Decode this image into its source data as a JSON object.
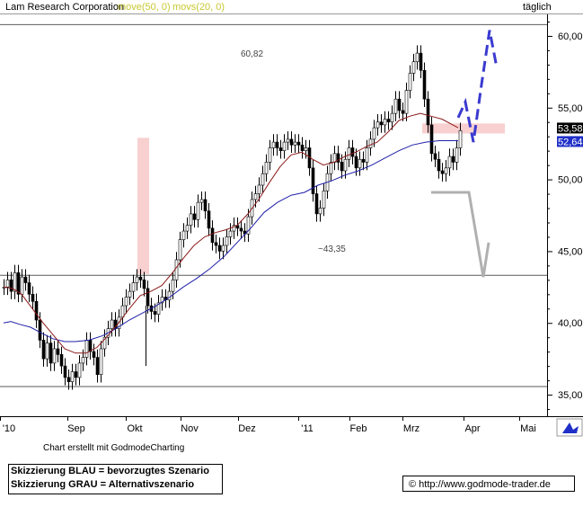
{
  "chart_data": {
    "type": "candlestick",
    "title": "Lam Research Corporation",
    "indicators": [
      {
        "label": "move(50, 0)",
        "color": "#c8c832"
      },
      {
        "label": "movs(20, 0)",
        "color": "#c8c832"
      }
    ],
    "timeframe": "täglich",
    "x_labels": [
      "'10",
      "Sep",
      "Okt",
      "Nov",
      "Dez",
      "'11",
      "Feb",
      "Mrz",
      "Apr",
      "Mai"
    ],
    "y_ticks": [
      "35,00",
      "40,00",
      "45,00",
      "50,00",
      "55,00",
      "60,00"
    ],
    "ylim": [
      33.5,
      61.5
    ],
    "horizontal_lines": [
      {
        "value": 60.82,
        "label": "60,82"
      },
      {
        "value": 43.35,
        "label": "~43,35"
      },
      {
        "value": 35.6,
        "label": ""
      }
    ],
    "price_labels": [
      {
        "value": 53.58,
        "text": "53,58",
        "bg": "#000000"
      },
      {
        "value": 52.64,
        "text": "52,64",
        "bg": "#1f2fc8"
      }
    ],
    "series": [
      {
        "name": "move(50, 0)",
        "color": "#1f1fa8",
        "points": [
          [
            0,
            40.0
          ],
          [
            8,
            40.1
          ],
          [
            18,
            39.9
          ],
          [
            30,
            39.7
          ],
          [
            42,
            39.3
          ],
          [
            55,
            38.9
          ],
          [
            68,
            38.7
          ],
          [
            80,
            38.7
          ],
          [
            95,
            38.8
          ],
          [
            110,
            39.1
          ],
          [
            125,
            39.6
          ],
          [
            140,
            40.2
          ],
          [
            155,
            40.7
          ],
          [
            170,
            41.2
          ],
          [
            185,
            41.8
          ],
          [
            200,
            42.5
          ],
          [
            215,
            43.1
          ],
          [
            230,
            43.8
          ],
          [
            245,
            44.6
          ],
          [
            260,
            45.6
          ],
          [
            275,
            46.6
          ],
          [
            290,
            47.7
          ],
          [
            305,
            48.4
          ],
          [
            320,
            48.9
          ],
          [
            335,
            49.1
          ],
          [
            350,
            49.6
          ],
          [
            365,
            49.9
          ],
          [
            380,
            50.3
          ],
          [
            395,
            50.6
          ],
          [
            410,
            51.0
          ],
          [
            425,
            51.5
          ],
          [
            440,
            52.0
          ],
          [
            455,
            52.4
          ],
          [
            470,
            52.6
          ],
          [
            485,
            52.7
          ],
          [
            500,
            52.7
          ],
          [
            506,
            52.7
          ]
        ]
      },
      {
        "name": "movs(20, 0)",
        "color": "#8b1a1a",
        "points": [
          [
            0,
            42.5
          ],
          [
            10,
            42.4
          ],
          [
            20,
            42.0
          ],
          [
            32,
            41.0
          ],
          [
            44,
            40.0
          ],
          [
            56,
            39.1
          ],
          [
            68,
            38.2
          ],
          [
            80,
            37.9
          ],
          [
            92,
            37.9
          ],
          [
            104,
            38.3
          ],
          [
            116,
            39.1
          ],
          [
            128,
            40.0
          ],
          [
            140,
            41.0
          ],
          [
            152,
            41.9
          ],
          [
            164,
            42.2
          ],
          [
            176,
            42.6
          ],
          [
            188,
            43.5
          ],
          [
            200,
            44.5
          ],
          [
            212,
            45.4
          ],
          [
            224,
            46.0
          ],
          [
            236,
            46.3
          ],
          [
            248,
            46.5
          ],
          [
            260,
            46.8
          ],
          [
            272,
            47.6
          ],
          [
            284,
            48.6
          ],
          [
            296,
            49.8
          ],
          [
            308,
            50.9
          ],
          [
            320,
            51.7
          ],
          [
            332,
            51.9
          ],
          [
            344,
            51.4
          ],
          [
            356,
            51.0
          ],
          [
            368,
            51.2
          ],
          [
            380,
            51.6
          ],
          [
            392,
            51.9
          ],
          [
            404,
            52.3
          ],
          [
            416,
            52.6
          ],
          [
            428,
            53.3
          ],
          [
            440,
            54.1
          ],
          [
            452,
            54.4
          ],
          [
            464,
            54.6
          ],
          [
            476,
            54.4
          ],
          [
            488,
            54.2
          ],
          [
            500,
            53.8
          ],
          [
            506,
            53.6
          ]
        ]
      }
    ],
    "candles": [
      [
        0,
        42.5
      ],
      [
        4,
        43.0
      ],
      [
        8,
        42.2
      ],
      [
        12,
        43.5
      ],
      [
        16,
        42.0
      ],
      [
        20,
        43.2
      ],
      [
        24,
        42.8
      ],
      [
        28,
        42.0
      ],
      [
        32,
        41.5
      ],
      [
        36,
        40.2
      ],
      [
        40,
        38.8
      ],
      [
        44,
        37.5
      ],
      [
        48,
        38.6
      ],
      [
        52,
        37.2
      ],
      [
        56,
        38.2
      ],
      [
        60,
        37.8
      ],
      [
        64,
        37.0
      ],
      [
        68,
        36.2
      ],
      [
        72,
        35.9
      ],
      [
        76,
        36.6
      ],
      [
        80,
        36.2
      ],
      [
        84,
        37.2
      ],
      [
        88,
        37.6
      ],
      [
        92,
        38.8
      ],
      [
        96,
        38.0
      ],
      [
        100,
        37.6
      ],
      [
        104,
        36.4
      ],
      [
        108,
        38.2
      ],
      [
        112,
        39.0
      ],
      [
        116,
        39.6
      ],
      [
        120,
        40.2
      ],
      [
        124,
        39.6
      ],
      [
        128,
        40.4
      ],
      [
        132,
        41.2
      ],
      [
        136,
        41.8
      ],
      [
        140,
        42.2
      ],
      [
        144,
        42.8
      ],
      [
        148,
        43.2
      ],
      [
        152,
        43.0
      ],
      [
        156,
        42.4
      ],
      [
        160,
        41.2
      ],
      [
        164,
        40.8
      ],
      [
        168,
        40.6
      ],
      [
        172,
        41.4
      ],
      [
        176,
        41.8
      ],
      [
        180,
        41.6
      ],
      [
        184,
        42.2
      ],
      [
        188,
        43.0
      ],
      [
        192,
        44.4
      ],
      [
        196,
        45.8
      ],
      [
        200,
        46.4
      ],
      [
        204,
        46.8
      ],
      [
        208,
        47.6
      ],
      [
        212,
        47.2
      ],
      [
        216,
        48.4
      ],
      [
        220,
        48.6
      ],
      [
        224,
        47.8
      ],
      [
        228,
        46.6
      ],
      [
        232,
        45.6
      ],
      [
        236,
        45.4
      ],
      [
        240,
        45.0
      ],
      [
        244,
        45.4
      ],
      [
        248,
        46.0
      ],
      [
        252,
        46.4
      ],
      [
        256,
        46.8
      ],
      [
        260,
        46.6
      ],
      [
        264,
        46.4
      ],
      [
        268,
        46.2
      ],
      [
        272,
        47.4
      ],
      [
        276,
        48.6
      ],
      [
        280,
        49.0
      ],
      [
        284,
        49.6
      ],
      [
        288,
        50.4
      ],
      [
        292,
        51.2
      ],
      [
        296,
        52.2
      ],
      [
        300,
        52.6
      ],
      [
        304,
        52.2
      ],
      [
        308,
        52.0
      ],
      [
        312,
        52.6
      ],
      [
        316,
        52.8
      ],
      [
        320,
        52.4
      ],
      [
        324,
        52.6
      ],
      [
        328,
        52.4
      ],
      [
        332,
        52.0
      ],
      [
        336,
        52.2
      ],
      [
        340,
        50.8
      ],
      [
        344,
        49.0
      ],
      [
        348,
        47.6
      ],
      [
        352,
        48.0
      ],
      [
        356,
        49.2
      ],
      [
        360,
        50.4
      ],
      [
        364,
        51.2
      ],
      [
        368,
        51.8
      ],
      [
        372,
        51.2
      ],
      [
        376,
        50.6
      ],
      [
        380,
        51.4
      ],
      [
        384,
        52.2
      ],
      [
        388,
        51.6
      ],
      [
        392,
        50.8
      ],
      [
        396,
        51.4
      ],
      [
        400,
        51.2
      ],
      [
        404,
        52.2
      ],
      [
        408,
        52.8
      ],
      [
        412,
        53.6
      ],
      [
        416,
        54.0
      ],
      [
        420,
        53.8
      ],
      [
        424,
        54.2
      ],
      [
        428,
        54.0
      ],
      [
        432,
        54.6
      ],
      [
        436,
        55.6
      ],
      [
        440,
        54.8
      ],
      [
        444,
        54.6
      ],
      [
        448,
        56.2
      ],
      [
        452,
        57.4
      ],
      [
        456,
        58.2
      ],
      [
        460,
        58.8
      ],
      [
        464,
        57.6
      ],
      [
        468,
        55.6
      ],
      [
        472,
        53.8
      ],
      [
        476,
        51.8
      ],
      [
        480,
        51.4
      ],
      [
        484,
        50.6
      ],
      [
        488,
        50.4
      ],
      [
        492,
        50.8
      ],
      [
        496,
        51.6
      ],
      [
        500,
        51.2
      ],
      [
        504,
        52.2
      ],
      [
        508,
        53.4
      ]
    ],
    "scenario_blue": [
      [
        510,
        54.3
      ],
      [
        518,
        55.4
      ],
      [
        527,
        52.6
      ],
      [
        536,
        56.6
      ],
      [
        545,
        60.4
      ],
      [
        553,
        57.8
      ]
    ],
    "scenario_grey": [
      [
        480,
        49.1
      ],
      [
        522,
        49.1
      ],
      [
        538,
        43.2
      ],
      [
        544,
        45.6
      ]
    ],
    "pink_zones": [
      {
        "x0": 153,
        "x1": 166,
        "y0": 43.4,
        "y1": 52.9
      },
      {
        "x0": 470,
        "x1": 562,
        "y0": 53.2,
        "y1": 53.9
      }
    ],
    "annotations": [
      {
        "text": "60,82",
        "value": 60.82
      },
      {
        "text": "~43,35",
        "value": 43.35
      }
    ]
  },
  "footer": {
    "credit": "Chart erstellt mit GodmodeCharting",
    "legend_blue": "Skizzierung BLAU = bevorzugtes Szenario",
    "legend_grey": "Skizzierung GRAU = Alternativszenario",
    "copyright_symbol": "©",
    "source": "http://www.godmode-trader.de"
  }
}
